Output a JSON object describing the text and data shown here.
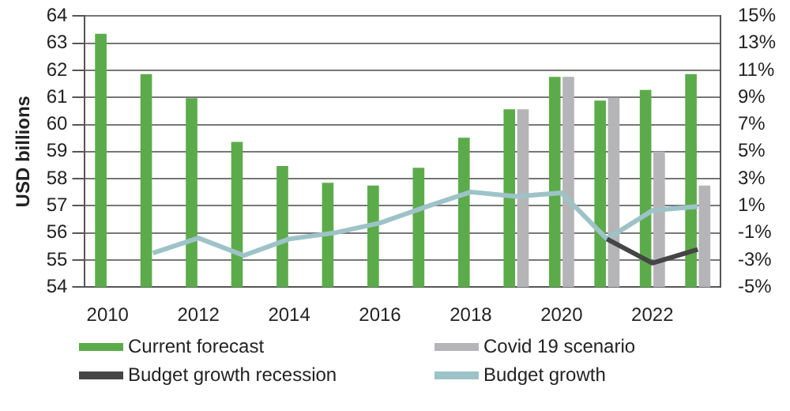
{
  "chart_data": {
    "type": "bar",
    "ylabel": "USD billions",
    "categories": [
      "2010",
      null,
      "2012",
      null,
      "2014",
      null,
      "2016",
      null,
      "2018",
      null,
      "2020",
      null,
      "2022",
      null
    ],
    "series": [
      {
        "name": "Current forecast",
        "color": "#5cab4b",
        "values": [
          63.35,
          61.86,
          60.97,
          59.36,
          58.47,
          57.85,
          57.75,
          58.4,
          59.51,
          60.56,
          61.76,
          60.88,
          61.28,
          61.86
        ]
      },
      {
        "name": "Covid 19 scenario",
        "color": "#b5b5b7",
        "values": [
          null,
          null,
          null,
          null,
          null,
          null,
          null,
          null,
          null,
          60.56,
          61.76,
          60.99,
          59.0,
          57.75
        ]
      },
      {
        "name": "Budget growth recession",
        "type": "line",
        "axis": "y2",
        "color": "#454545",
        "values": [
          null,
          null,
          null,
          null,
          null,
          null,
          null,
          null,
          null,
          null,
          null,
          -1.45,
          -3.23,
          -2.23
        ]
      },
      {
        "name": "Budget growth",
        "type": "line",
        "axis": "y2",
        "color": "#9dc3c8",
        "values": [
          null,
          -2.49,
          -1.38,
          -2.67,
          -1.45,
          -1.0,
          -0.27,
          0.91,
          2.02,
          1.69,
          1.95,
          -1.45,
          0.65,
          0.95
        ]
      }
    ],
    "ylim": [
      54,
      64
    ],
    "yticks": [
      54,
      55,
      56,
      57,
      58,
      59,
      60,
      61,
      62,
      63,
      64
    ],
    "y2lim": [
      -5,
      15
    ],
    "y2ticks": [
      {
        "value": -5,
        "label": "-5%"
      },
      {
        "value": -3,
        "label": "-3%"
      },
      {
        "value": -1,
        "label": "-1%"
      },
      {
        "value": 1,
        "label": "1%"
      },
      {
        "value": 3,
        "label": "3%"
      },
      {
        "value": 5,
        "label": "5%"
      },
      {
        "value": 7,
        "label": "7%"
      },
      {
        "value": 9,
        "label": "9%"
      },
      {
        "value": 11,
        "label": "11%"
      },
      {
        "value": 13,
        "label": "13%"
      },
      {
        "value": 15,
        "label": "15%"
      }
    ],
    "grid": "y",
    "legend": "bottom",
    "marker": "none"
  }
}
